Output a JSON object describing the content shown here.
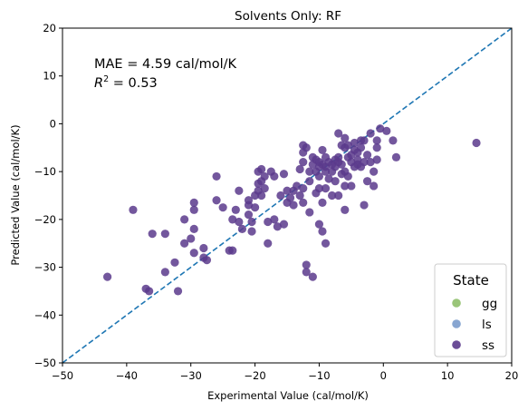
{
  "chart_data": {
    "type": "scatter",
    "title": "Solvents Only: RF",
    "xlabel": "Experimental Value (cal/mol/K)",
    "ylabel": "Predicted Value (cal/mol/K)",
    "xlim": [
      -50,
      20
    ],
    "ylim": [
      -50,
      20
    ],
    "xticks": [
      -50,
      -40,
      -30,
      -20,
      -10,
      0,
      10,
      20
    ],
    "yticks": [
      -50,
      -40,
      -30,
      -20,
      -10,
      0,
      10,
      20
    ],
    "grid": false,
    "annotation_line1": "MAE = 4.59 cal/mol/K",
    "annotation_line2_prefix": "R",
    "annotation_line2_sup": "2",
    "annotation_line2_suffix": " = 0.53",
    "reference_line": {
      "style": "dashed",
      "color": "#1f77b4",
      "points": [
        [
          -50,
          -50
        ],
        [
          20,
          20
        ]
      ]
    },
    "legend": {
      "title": "State",
      "placement": "bottom-right",
      "entries": [
        {
          "label": "gg",
          "color": "#8fbf6a"
        },
        {
          "label": "ls",
          "color": "#7b9ccc"
        },
        {
          "label": "ss",
          "color": "#5b3a8c"
        }
      ]
    },
    "series": [
      {
        "name": "ss",
        "color": "#5b3a8c",
        "points": [
          [
            -43,
            -32
          ],
          [
            -39,
            -18
          ],
          [
            -37,
            -34.5
          ],
          [
            -36.5,
            -35
          ],
          [
            -36,
            -23
          ],
          [
            -34,
            -31
          ],
          [
            -34,
            -23
          ],
          [
            -32.5,
            -29
          ],
          [
            -32,
            -35
          ],
          [
            -31,
            -20
          ],
          [
            -31,
            -25
          ],
          [
            -30,
            -24
          ],
          [
            -29.5,
            -16.5
          ],
          [
            -29.5,
            -18
          ],
          [
            -29.5,
            -22
          ],
          [
            -29.5,
            -27
          ],
          [
            -28,
            -28
          ],
          [
            -28,
            -26
          ],
          [
            -27.5,
            -28.5
          ],
          [
            -26,
            -11
          ],
          [
            -26,
            -16
          ],
          [
            -25,
            -17.5
          ],
          [
            -24,
            -26.5
          ],
          [
            -23.5,
            -20
          ],
          [
            -23.5,
            -26.5
          ],
          [
            -23,
            -18
          ],
          [
            -22.5,
            -14
          ],
          [
            -22.5,
            -20.5
          ],
          [
            -22,
            -22
          ],
          [
            -21,
            -16
          ],
          [
            -21,
            -17
          ],
          [
            -21,
            -19
          ],
          [
            -20.5,
            -20.5
          ],
          [
            -20.5,
            -22.5
          ],
          [
            -20,
            -15
          ],
          [
            -20,
            -17.5
          ],
          [
            -19.5,
            -10
          ],
          [
            -19.5,
            -12.5
          ],
          [
            -19.5,
            -14
          ],
          [
            -19,
            -9.5
          ],
          [
            -19,
            -12
          ],
          [
            -19,
            -15
          ],
          [
            -18.5,
            -11
          ],
          [
            -18.5,
            -13.5
          ],
          [
            -18,
            -20.5
          ],
          [
            -18,
            -25
          ],
          [
            -17.5,
            -10
          ],
          [
            -17,
            -11
          ],
          [
            -17,
            -20
          ],
          [
            -16.5,
            -21.5
          ],
          [
            -16,
            -15
          ],
          [
            -15.5,
            -10.5
          ],
          [
            -15.5,
            -21
          ],
          [
            -15,
            -14
          ],
          [
            -15,
            -16.5
          ],
          [
            -14.5,
            -15.5
          ],
          [
            -14,
            -17
          ],
          [
            -14,
            -14
          ],
          [
            -13.5,
            -13
          ],
          [
            -13,
            -9.5
          ],
          [
            -13,
            -15
          ],
          [
            -12.5,
            -4.5
          ],
          [
            -12.5,
            -6
          ],
          [
            -12.5,
            -8
          ],
          [
            -12.5,
            -13.5
          ],
          [
            -12.5,
            -16.5
          ],
          [
            -12,
            -31
          ],
          [
            -12,
            -29.5
          ],
          [
            -12,
            -5
          ],
          [
            -11.5,
            -10
          ],
          [
            -11.5,
            -12
          ],
          [
            -11.5,
            -18.5
          ],
          [
            -11,
            -7
          ],
          [
            -11,
            -8.5
          ],
          [
            -11,
            -32
          ],
          [
            -10.5,
            -7.5
          ],
          [
            -10.5,
            -10
          ],
          [
            -10.5,
            -14.5
          ],
          [
            -10,
            -8
          ],
          [
            -10,
            -9
          ],
          [
            -10,
            -11
          ],
          [
            -10,
            -13.5
          ],
          [
            -10,
            -21
          ],
          [
            -9.5,
            -5.5
          ],
          [
            -9.5,
            -8.5
          ],
          [
            -9.5,
            -16.5
          ],
          [
            -9.5,
            -22.5
          ],
          [
            -9,
            -7
          ],
          [
            -9,
            -9
          ],
          [
            -9,
            -10
          ],
          [
            -9,
            -13.5
          ],
          [
            -9,
            -25
          ],
          [
            -8.5,
            -8
          ],
          [
            -8.5,
            -11.5
          ],
          [
            -8,
            -8.5
          ],
          [
            -8,
            -10
          ],
          [
            -8,
            -15
          ],
          [
            -7.5,
            -7.5
          ],
          [
            -7.5,
            -9
          ],
          [
            -7.5,
            -12
          ],
          [
            -7,
            -2
          ],
          [
            -7,
            -7
          ],
          [
            -7,
            -8
          ],
          [
            -7,
            -15
          ],
          [
            -6.5,
            -4.5
          ],
          [
            -6.5,
            -8.5
          ],
          [
            -6.5,
            -10.5
          ],
          [
            -6,
            -3
          ],
          [
            -6,
            -5
          ],
          [
            -6,
            -10
          ],
          [
            -6,
            -13
          ],
          [
            -6,
            -18
          ],
          [
            -5.5,
            -4.5
          ],
          [
            -5.5,
            -7
          ],
          [
            -5.5,
            -11
          ],
          [
            -5,
            -6.5
          ],
          [
            -5,
            -8
          ],
          [
            -5,
            -13
          ],
          [
            -4.5,
            -4
          ],
          [
            -4.5,
            -5.5
          ],
          [
            -4.5,
            -9
          ],
          [
            -4,
            -6
          ],
          [
            -4,
            -7.5
          ],
          [
            -4,
            -8.5
          ],
          [
            -3.5,
            -3.5
          ],
          [
            -3.5,
            -5
          ],
          [
            -3.5,
            -9
          ],
          [
            -3,
            -3.5
          ],
          [
            -3,
            -8
          ],
          [
            -3,
            -17
          ],
          [
            -2.5,
            -6.5
          ],
          [
            -2.5,
            -12
          ],
          [
            -2,
            -2
          ],
          [
            -2,
            -8
          ],
          [
            -1.5,
            -10
          ],
          [
            -1.5,
            -13
          ],
          [
            -1,
            -3.5
          ],
          [
            -1,
            -5
          ],
          [
            -1,
            -7.5
          ],
          [
            -0.5,
            -1
          ],
          [
            0.5,
            -1.5
          ],
          [
            1.5,
            -3.5
          ],
          [
            2,
            -7
          ],
          [
            14.5,
            -4
          ]
        ]
      }
    ]
  }
}
